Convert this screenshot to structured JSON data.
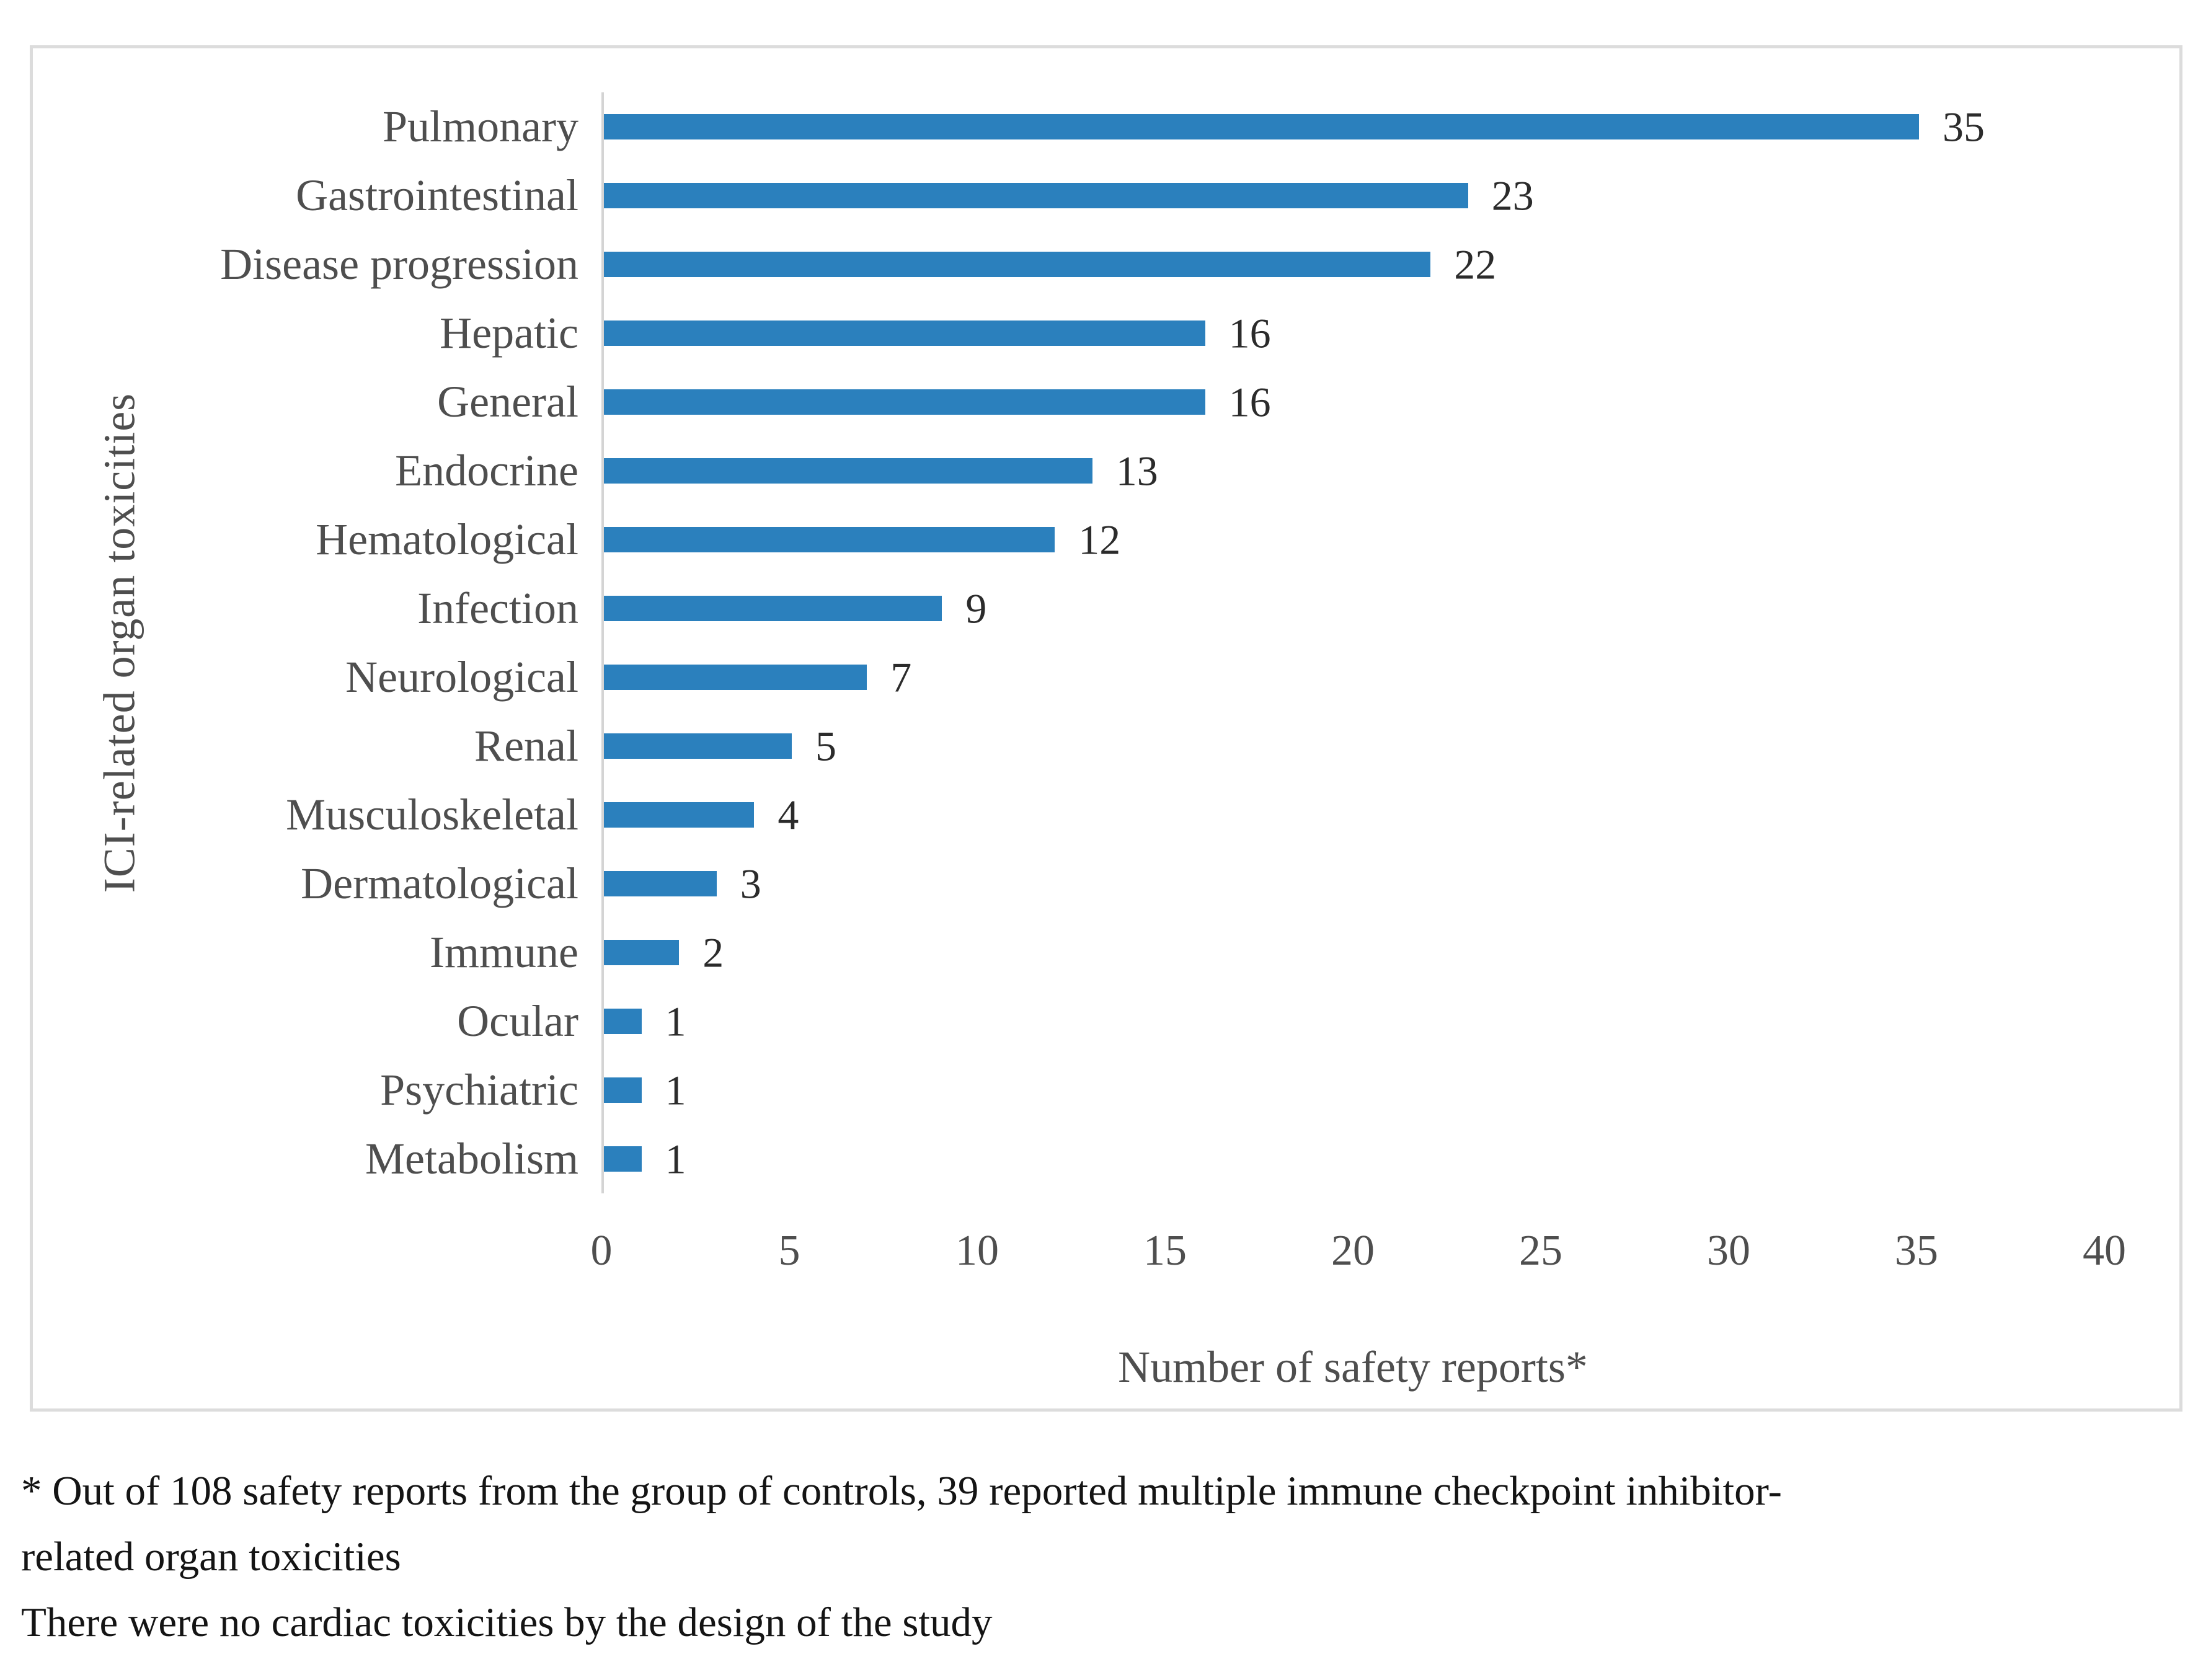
{
  "chart_data": {
    "type": "bar",
    "orientation": "horizontal",
    "title": "",
    "categories": [
      "Pulmonary",
      "Gastrointestinal",
      "Disease progression",
      "Hepatic",
      "General",
      "Endocrine",
      "Hematological",
      "Infection",
      "Neurological",
      "Renal",
      "Musculoskeletal",
      "Dermatological",
      "Immune",
      "Ocular",
      "Psychiatric",
      "Metabolism"
    ],
    "values": [
      35,
      23,
      22,
      16,
      16,
      13,
      12,
      9,
      7,
      5,
      4,
      3,
      2,
      1,
      1,
      1
    ],
    "xlabel": "Number of safety reports*",
    "ylabel": "ICI-related organ toxicities",
    "xlim": [
      0,
      40
    ],
    "xticks": [
      0,
      5,
      10,
      15,
      20,
      25,
      30,
      35,
      40
    ],
    "grid": false,
    "legend": "none",
    "value_labels_shown": true,
    "bar_color": "#2b80bd",
    "axis_line_color": "#d4d4d4",
    "label_text_color": "#4e4e4e",
    "value_text_color": "#2b2b2b",
    "border_color": "#dcdcdc"
  },
  "footnote": {
    "lines": [
      "* Out of 108 safety reports from the group of controls, 39 reported multiple immune checkpoint inhibitor-",
      "related organ toxicities",
      "There were no cardiac toxicities by the design of the study"
    ]
  }
}
